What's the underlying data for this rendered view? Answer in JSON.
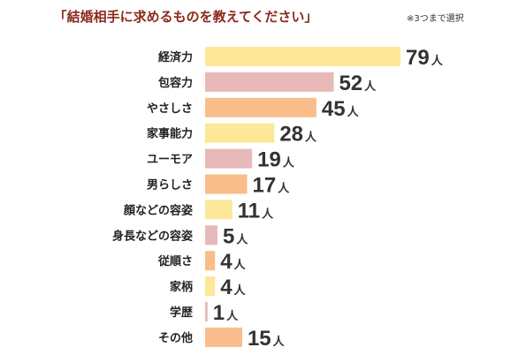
{
  "header": {
    "title": "「結婚相手に求めるものを教えてください」",
    "note": "※3つまで選択"
  },
  "colors": {
    "yellow": "#fde89a",
    "pink": "#e8b9b9",
    "orange": "#f8bd8a",
    "title": "#8a2a1c"
  },
  "chart_data": {
    "type": "bar",
    "orientation": "horizontal",
    "categories": [
      "経済力",
      "包容力",
      "やさしさ",
      "家事能力",
      "ユーモア",
      "男らしさ",
      "顔などの容姿",
      "身長などの容姿",
      "従順さ",
      "家柄",
      "学歴",
      "その他"
    ],
    "values": [
      79,
      52,
      45,
      28,
      19,
      17,
      11,
      5,
      4,
      4,
      1,
      15
    ],
    "unit": "人",
    "bar_colors": [
      "#fde89a",
      "#e8b9b9",
      "#f8bd8a",
      "#fde89a",
      "#e8b9b9",
      "#f8bd8a",
      "#fde89a",
      "#e8b9b9",
      "#f8bd8a",
      "#fde89a",
      "#e8b9b9",
      "#f8bd8a"
    ],
    "title": "「結婚相手に求めるものを教えてください」",
    "xlim": [
      0,
      79
    ],
    "grid": false,
    "legend": "none"
  }
}
